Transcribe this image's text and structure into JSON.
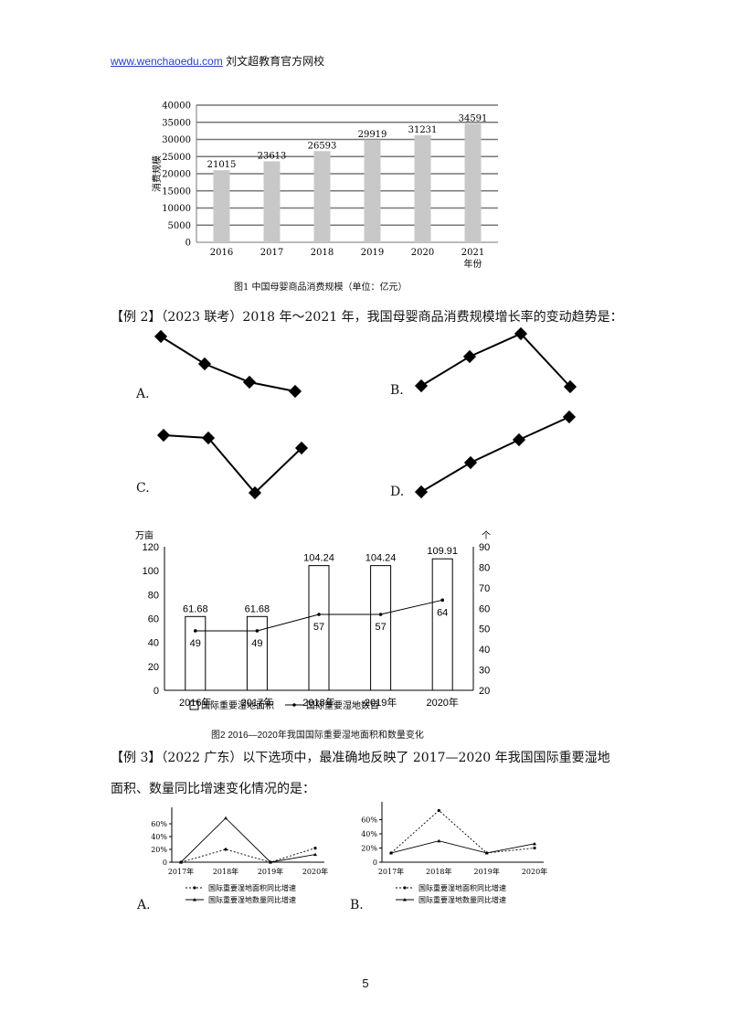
{
  "header": {
    "link": "www.wenchaoedu.com",
    "rest": " 刘文超教育官方网校"
  },
  "figure1": {
    "caption": "图1  中国母婴商品消费规模（单位：亿元）",
    "chart_data": {
      "type": "bar",
      "title": "",
      "ylabel": "消费规模",
      "xlabel": "年份",
      "categories": [
        "2016",
        "2017",
        "2018",
        "2019",
        "2020",
        "2021"
      ],
      "values": [
        21015,
        23613,
        26593,
        29919,
        31231,
        34591
      ],
      "ylim": [
        0,
        40000
      ],
      "yticks": [
        0,
        5000,
        10000,
        15000,
        20000,
        25000,
        30000,
        35000,
        40000
      ],
      "grid": true,
      "color": "#c8c8c8"
    }
  },
  "example2": {
    "prompt": "【例 2】（2023 联考）2018 年～2021 年，我国母婴商品消费规模增长率的变动趋势是：",
    "options": [
      {
        "label": "A.",
        "shape": "steady decline"
      },
      {
        "label": "B.",
        "shape": "rise then sharp fall"
      },
      {
        "label": "C.",
        "shape": "flat, dip, rise"
      },
      {
        "label": "D.",
        "shape": "steady rise"
      }
    ]
  },
  "figure2": {
    "caption": "图2  2016—2020年我国国际重要湿地面积和数量变化",
    "chart_data": {
      "type": "bar",
      "categories": [
        "2016年",
        "2017年",
        "2018年",
        "2019年",
        "2020年"
      ],
      "left_unit": "万亩",
      "right_unit": "个",
      "ylim_left": [
        0,
        120
      ],
      "yticks_left": [
        0,
        20,
        40,
        60,
        80,
        100,
        120
      ],
      "ylim_right": [
        20,
        90
      ],
      "yticks_right": [
        20,
        30,
        40,
        50,
        60,
        70,
        80,
        90
      ],
      "series": [
        {
          "name": "国际重要湿地面积",
          "type": "bar",
          "axis": "left",
          "values": [
            61.68,
            61.68,
            104.24,
            104.24,
            109.91
          ]
        },
        {
          "name": "国际重要湿地数目",
          "type": "line",
          "axis": "right",
          "values": [
            49,
            49,
            57,
            57,
            64
          ]
        }
      ]
    }
  },
  "example3": {
    "prompt_line1": "【例 3】（2022 广东）以下选项中，最准确地反映了 2017—2020 年我国国际重要湿地",
    "prompt_line2": "面积、数量同比增速变化情况的是：",
    "options": [
      {
        "label": "A.",
        "chart_data": {
          "type": "line",
          "categories": [
            "2017年",
            "2018年",
            "2019年",
            "2020年"
          ],
          "yticks": [
            "0",
            "20%",
            "40%",
            "60%"
          ],
          "ylim": [
            0,
            80
          ],
          "series": [
            {
              "name": "国际重要湿地面积同比增速",
              "style": "dotted",
              "values": [
                0,
                20,
                0,
                22
              ]
            },
            {
              "name": "国际重要湿地数量同比增速",
              "style": "solid",
              "values": [
                0,
                69,
                0,
                12
              ]
            }
          ]
        }
      },
      {
        "label": "B.",
        "chart_data": {
          "type": "line",
          "categories": [
            "2017年",
            "2018年",
            "2019年",
            "2020年"
          ],
          "yticks": [
            "0",
            "20%",
            "40%",
            "60%"
          ],
          "ylim": [
            0,
            80
          ],
          "series": [
            {
              "name": "国际重要湿地面积同比增速",
              "style": "dotted",
              "values": [
                13,
                73,
                13,
                20
              ]
            },
            {
              "name": "国际重要湿地数量同比增速",
              "style": "solid",
              "values": [
                13,
                30,
                13,
                26
              ]
            }
          ]
        }
      }
    ]
  },
  "page_number": "5"
}
